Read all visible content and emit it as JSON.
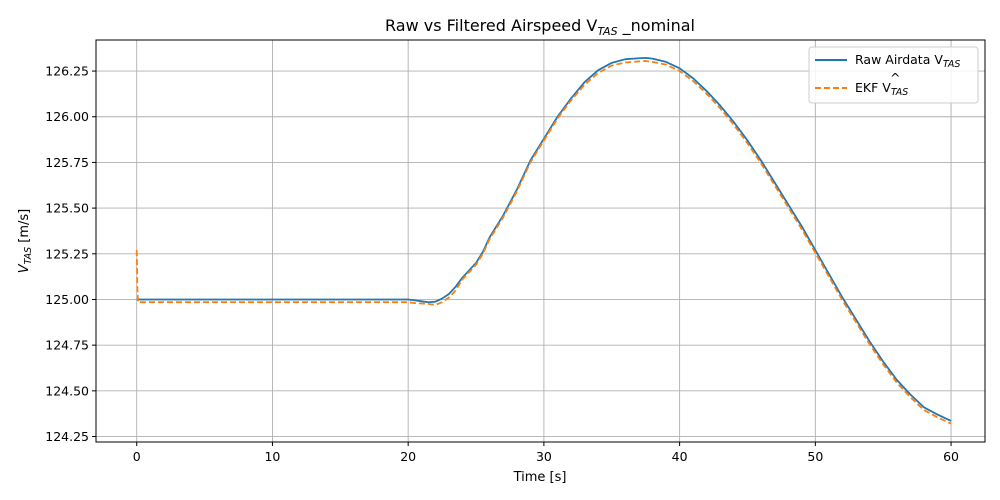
{
  "chart_data": {
    "type": "line",
    "title_main": "Raw vs Filtered Airspeed V",
    "title_sub": "TAS",
    "title_tail": " _nominal",
    "xlabel": "Time [s]",
    "ylabel_main": "V",
    "ylabel_sub": "TAS",
    "ylabel_tail": " [m/s]",
    "xlim": [
      -3,
      62.5
    ],
    "ylim": [
      124.22,
      126.42
    ],
    "xticks": [
      0,
      10,
      20,
      30,
      40,
      50,
      60
    ],
    "yticks": [
      124.25,
      124.5,
      124.75,
      125.0,
      125.25,
      125.5,
      125.75,
      126.0,
      126.25
    ],
    "ytick_labels": [
      "124.25",
      "124.50",
      "124.75",
      "125.00",
      "125.25",
      "125.50",
      "125.75",
      "126.00",
      "126.25"
    ],
    "grid": true,
    "legend_position": "top-right",
    "series": [
      {
        "name_main": "Raw Airdata V",
        "name_sub": "TAS",
        "color": "#1f77b4",
        "dash": "solid",
        "x": [
          0,
          0.05,
          2,
          5,
          10,
          15,
          19,
          20,
          20.5,
          21,
          21.5,
          22,
          22.5,
          23,
          23.5,
          24,
          25,
          25.5,
          26,
          27,
          28,
          29,
          30,
          31,
          32,
          33,
          34,
          35,
          36,
          37,
          37.5,
          38,
          39,
          40,
          41,
          42,
          43,
          44,
          45,
          46,
          47,
          48,
          49,
          50,
          51,
          52,
          53,
          54,
          55,
          56,
          57,
          58,
          59,
          60
        ],
        "y": [
          125.0,
          125.0,
          125.0,
          125.0,
          125.0,
          125.0,
          125.0,
          125.0,
          124.995,
          124.99,
          124.985,
          124.988,
          125.005,
          125.03,
          125.07,
          125.12,
          125.2,
          125.26,
          125.34,
          125.46,
          125.6,
          125.76,
          125.88,
          126.0,
          126.1,
          126.19,
          126.255,
          126.295,
          126.315,
          126.32,
          126.322,
          126.318,
          126.3,
          126.265,
          126.21,
          126.14,
          126.06,
          125.97,
          125.87,
          125.76,
          125.64,
          125.52,
          125.4,
          125.27,
          125.14,
          125.01,
          124.89,
          124.77,
          124.66,
          124.56,
          124.48,
          124.41,
          124.37,
          124.335
        ]
      },
      {
        "name_main": "EKF V",
        "name_sub": "TAS",
        "color": "#ff7f0e",
        "dash": "dashed",
        "x": [
          0,
          0.05,
          0.1,
          2,
          5,
          10,
          15,
          19,
          20,
          20.5,
          21,
          21.5,
          22,
          22.5,
          23,
          23.5,
          24,
          25,
          25.5,
          26,
          27,
          28,
          29,
          30,
          31,
          32,
          33,
          34,
          35,
          36,
          37,
          37.5,
          38,
          39,
          40,
          41,
          42,
          43,
          44,
          45,
          46,
          47,
          48,
          49,
          50,
          51,
          52,
          53,
          54,
          55,
          56,
          57,
          58,
          59,
          60
        ],
        "y": [
          125.27,
          125.05,
          124.985,
          124.985,
          124.985,
          124.985,
          124.985,
          124.985,
          124.985,
          124.98,
          124.978,
          124.975,
          124.97,
          124.985,
          125.01,
          125.05,
          125.11,
          125.19,
          125.25,
          125.33,
          125.45,
          125.59,
          125.75,
          125.87,
          125.99,
          126.09,
          126.175,
          126.24,
          126.28,
          126.297,
          126.303,
          126.305,
          126.3,
          126.285,
          126.25,
          126.195,
          126.125,
          126.045,
          125.955,
          125.855,
          125.745,
          125.625,
          125.505,
          125.385,
          125.255,
          125.125,
          124.995,
          124.875,
          124.755,
          124.645,
          124.545,
          124.465,
          124.395,
          124.355,
          124.32
        ]
      }
    ]
  }
}
